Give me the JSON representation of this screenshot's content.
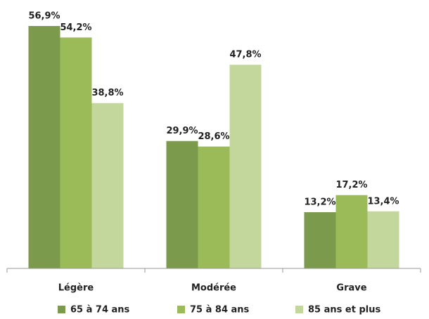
{
  "chart_data": {
    "type": "bar",
    "categories": [
      "Légère",
      "Modérée",
      "Grave"
    ],
    "series": [
      {
        "name": "65 à 74 ans",
        "color": "#7b9a4c",
        "values": [
          56.9,
          29.9,
          13.2
        ],
        "value_labels": [
          "56,9%",
          "29,9%",
          "13,2%"
        ]
      },
      {
        "name": "75 à 84 ans",
        "color": "#9bbb59",
        "values": [
          54.2,
          28.6,
          17.2
        ],
        "value_labels": [
          "54,2%",
          "28,6%",
          "17,2%"
        ]
      },
      {
        "name": "85 ans et plus",
        "color": "#c3d69b",
        "values": [
          38.8,
          47.8,
          13.4
        ],
        "value_labels": [
          "38,8%",
          "47,8%",
          "13,4%"
        ]
      }
    ],
    "legend": "bottom"
  }
}
